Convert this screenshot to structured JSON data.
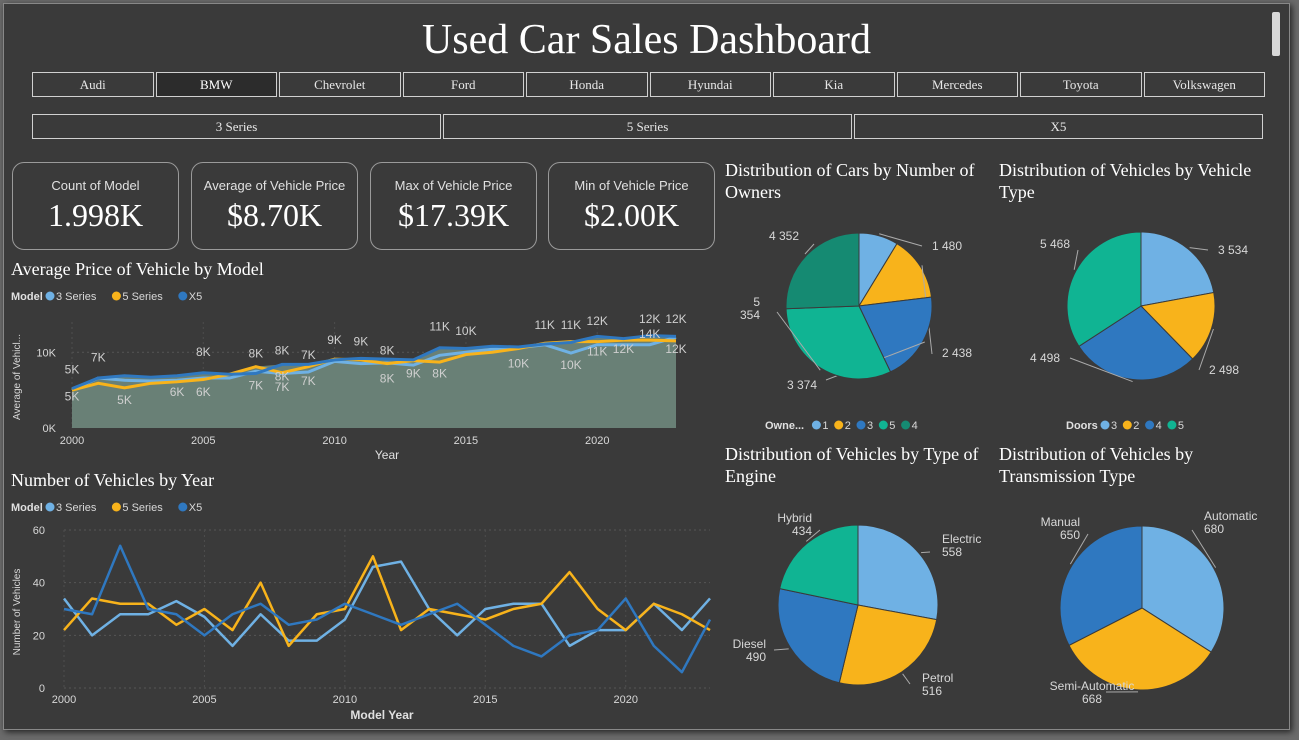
{
  "title": "Used Car Sales Dashboard",
  "brands": [
    "Audi",
    "BMW",
    "Chevrolet",
    "Ford",
    "Honda",
    "Hyundai",
    "Kia",
    "Mercedes",
    "Toyota",
    "Volkswagen"
  ],
  "selected_brand": "BMW",
  "models": [
    "3 Series",
    "5 Series",
    "X5"
  ],
  "colors": {
    "series1": "#6fb1e4",
    "series2": "#f8b31b",
    "series3": "#2f78c0",
    "series4": "#158a72",
    "teal": "#10b493",
    "area": "#6b8479",
    "bg": "#3a3a3a"
  },
  "cards": [
    {
      "label": "Count of Model",
      "value": "1.998K"
    },
    {
      "label": "Average of Vehicle Price",
      "value": "$8.70K"
    },
    {
      "label": "Max of Vehicle Price",
      "value": "$17.39K"
    },
    {
      "label": "Min of Vehicle Price",
      "value": "$2.00K"
    }
  ],
  "chart_data": [
    {
      "type": "area",
      "title": "Average Price of Vehicle by Model",
      "legend_title": "Model",
      "xlabel": "Year",
      "ylabel": "Average of Vehicl...",
      "xlim": [
        2000,
        2023
      ],
      "ylim": [
        0,
        14000
      ],
      "x_ticks": [
        2000,
        2005,
        2010,
        2015,
        2020
      ],
      "y_ticks": [
        {
          "v": 0,
          "l": "0K"
        },
        {
          "v": 10000,
          "l": "10K"
        }
      ],
      "x": [
        2000,
        2001,
        2002,
        2003,
        2004,
        2005,
        2006,
        2007,
        2008,
        2009,
        2010,
        2011,
        2012,
        2013,
        2014,
        2015,
        2016,
        2017,
        2018,
        2019,
        2020,
        2021,
        2022,
        2023
      ],
      "series": [
        {
          "name": "3 Series",
          "values": [
            5000,
            6600,
            6300,
            6200,
            6300,
            6600,
            6600,
            7500,
            7200,
            7400,
            8800,
            8500,
            8600,
            8300,
            9600,
            10000,
            10400,
            10600,
            11000,
            9900,
            11000,
            11000,
            11000,
            12000
          ]
        },
        {
          "name": "5 Series",
          "values": [
            5000,
            5900,
            5300,
            5900,
            6100,
            6400,
            7100,
            8100,
            7300,
            8100,
            9100,
            9000,
            8500,
            8900,
            8700,
            9700,
            10000,
            10500,
            11200,
            11400,
            11400,
            11600,
            11600,
            11500
          ]
        },
        {
          "name": "X5",
          "values": [
            5200,
            6600,
            6900,
            6700,
            6900,
            7300,
            7100,
            7200,
            8400,
            8400,
            9000,
            9200,
            9100,
            9000,
            10600,
            10500,
            10800,
            10700,
            11100,
            11300,
            12100,
            11800,
            12200,
            12100
          ]
        }
      ],
      "data_labels": [
        {
          "x": 2000,
          "y": 7200,
          "t": "5K"
        },
        {
          "x": 2000,
          "y": 3600,
          "t": "5K"
        },
        {
          "x": 2001,
          "y": 8800,
          "t": "7K"
        },
        {
          "x": 2002,
          "y": 3200,
          "t": "5K"
        },
        {
          "x": 2005,
          "y": 9500,
          "t": "8K"
        },
        {
          "x": 2004,
          "y": 4200,
          "t": "6K"
        },
        {
          "x": 2005,
          "y": 4200,
          "t": "6K"
        },
        {
          "x": 2007,
          "y": 9300,
          "t": "8K"
        },
        {
          "x": 2008,
          "y": 9700,
          "t": "8K"
        },
        {
          "x": 2009,
          "y": 9100,
          "t": "7K"
        },
        {
          "x": 2007,
          "y": 5100,
          "t": "7K"
        },
        {
          "x": 2008,
          "y": 6300,
          "t": "8K"
        },
        {
          "x": 2008,
          "y": 4900,
          "t": "7K"
        },
        {
          "x": 2009,
          "y": 5700,
          "t": "7K"
        },
        {
          "x": 2010,
          "y": 11100,
          "t": "9K"
        },
        {
          "x": 2011,
          "y": 10900,
          "t": "9K"
        },
        {
          "x": 2012,
          "y": 9700,
          "t": "8K"
        },
        {
          "x": 2012,
          "y": 6000,
          "t": "8K"
        },
        {
          "x": 2013,
          "y": 6700,
          "t": "9K"
        },
        {
          "x": 2014,
          "y": 6700,
          "t": "8K"
        },
        {
          "x": 2014,
          "y": 12900,
          "t": "11K"
        },
        {
          "x": 2015,
          "y": 12300,
          "t": "10K"
        },
        {
          "x": 2017,
          "y": 8000,
          "t": "10K"
        },
        {
          "x": 2018,
          "y": 13100,
          "t": "11K"
        },
        {
          "x": 2019,
          "y": 13100,
          "t": "11K"
        },
        {
          "x": 2019,
          "y": 7800,
          "t": "10K"
        },
        {
          "x": 2020,
          "y": 13600,
          "t": "12K"
        },
        {
          "x": 2020,
          "y": 9600,
          "t": "11K"
        },
        {
          "x": 2021,
          "y": 9900,
          "t": "12K"
        },
        {
          "x": 2022,
          "y": 13900,
          "t": "12K"
        },
        {
          "x": 2023,
          "y": 13900,
          "t": "12K"
        },
        {
          "x": 2022,
          "y": 11900,
          "t": "14K"
        },
        {
          "x": 2023,
          "y": 9900,
          "t": "12K"
        }
      ]
    },
    {
      "type": "line",
      "title": "Number of Vehicles by Year",
      "legend_title": "Model",
      "xlabel": "Model Year",
      "ylabel": "Number of Vehicles",
      "xlim": [
        2000,
        2023
      ],
      "ylim": [
        0,
        60
      ],
      "x_ticks": [
        2000,
        2005,
        2010,
        2015,
        2020
      ],
      "y_ticks": [
        {
          "v": 0,
          "l": "0"
        },
        {
          "v": 20,
          "l": "20"
        },
        {
          "v": 40,
          "l": "40"
        },
        {
          "v": 60,
          "l": "60"
        }
      ],
      "x": [
        2000,
        2001,
        2002,
        2003,
        2004,
        2005,
        2006,
        2007,
        2008,
        2009,
        2010,
        2011,
        2012,
        2013,
        2014,
        2015,
        2016,
        2017,
        2018,
        2019,
        2020,
        2021,
        2022,
        2023
      ],
      "series": [
        {
          "name": "3 Series",
          "values": [
            34,
            20,
            28,
            28,
            33,
            27,
            16,
            28,
            18,
            18,
            26,
            46,
            48,
            30,
            20,
            30,
            32,
            32,
            16,
            22,
            22,
            32,
            22,
            34
          ]
        },
        {
          "name": "5 Series",
          "values": [
            22,
            34,
            32,
            32,
            24,
            30,
            22,
            40,
            16,
            28,
            30,
            50,
            22,
            30,
            28,
            26,
            30,
            32,
            44,
            30,
            22,
            32,
            28,
            22
          ]
        },
        {
          "name": "X5",
          "values": [
            30,
            28,
            54,
            30,
            28,
            20,
            28,
            32,
            24,
            26,
            32,
            28,
            24,
            28,
            32,
            24,
            16,
            12,
            20,
            22,
            34,
            16,
            6,
            26
          ]
        }
      ]
    },
    {
      "type": "pie",
      "title": "Distribution of Cars by Number of Owners",
      "legend_title": "Owne...",
      "slices": [
        {
          "name": "1",
          "value": 1480,
          "label": "1 480"
        },
        {
          "name": "2",
          "value": 2438,
          "label": "2 438"
        },
        {
          "name": "3",
          "value": 3374,
          "label": "3 374"
        },
        {
          "name": "5",
          "value": 5354,
          "label": "5 354"
        },
        {
          "name": "4",
          "value": 4352,
          "label": "4 352"
        }
      ],
      "legend": [
        "1",
        "2",
        "3",
        "5",
        "4"
      ]
    },
    {
      "type": "pie",
      "title": "Distribution of Vehicles by Vehicle Type",
      "legend_title": "Doors",
      "slices": [
        {
          "name": "3",
          "value": 3534,
          "label": "3 534"
        },
        {
          "name": "2",
          "value": 2498,
          "label": "2 498"
        },
        {
          "name": "4",
          "value": 4498,
          "label": "4 498"
        },
        {
          "name": "5",
          "value": 5468,
          "label": "5 468"
        }
      ],
      "legend": [
        "3",
        "2",
        "4",
        "5"
      ]
    },
    {
      "type": "pie",
      "title": "Distribution of Vehicles by Type of Engine",
      "slices": [
        {
          "name": "Electric",
          "value": 558,
          "label": "Electric 558"
        },
        {
          "name": "Petrol",
          "value": 516,
          "label": "Petrol 516"
        },
        {
          "name": "Diesel",
          "value": 490,
          "label": "Diesel 490"
        },
        {
          "name": "Hybrid",
          "value": 434,
          "label": "Hybrid 434"
        }
      ]
    },
    {
      "type": "pie",
      "title": "Distribution of Vehicles by Transmission Type",
      "slices": [
        {
          "name": "Automatic",
          "value": 680,
          "label": "Automatic 680"
        },
        {
          "name": "Semi-Automatic",
          "value": 668,
          "label": "Semi-Automatic 668"
        },
        {
          "name": "Manual",
          "value": 650,
          "label": "Manual 650"
        }
      ]
    }
  ]
}
